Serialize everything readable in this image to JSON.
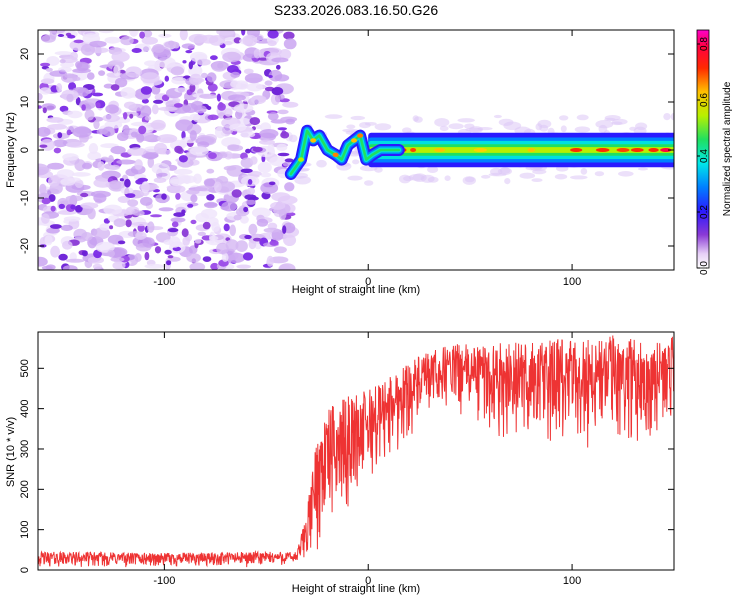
{
  "figure": {
    "title": "S233.2026.083.16.50.G26"
  },
  "chart_data": [
    {
      "type": "heatmap",
      "title": "S233.2026.083.16.50.G26",
      "xlabel": "Height of straight line (km)",
      "ylabel": "Frequency (Hz)",
      "xlim": [
        -162,
        150
      ],
      "ylim": [
        -25,
        25
      ],
      "xticks": [
        -100,
        0,
        100
      ],
      "yticks": [
        -20,
        -10,
        0,
        10,
        20
      ],
      "xtick_labels": [
        "-100",
        "0",
        "100"
      ],
      "ytick_labels": [
        "-20",
        "-10",
        "0",
        "10",
        "20"
      ],
      "colorbar": {
        "label": "Normalized spectral amplitude",
        "range": [
          0.0,
          0.85
        ],
        "ticks": [
          0.0,
          0.2,
          0.4,
          0.6,
          0.8
        ],
        "tick_labels": [
          "0.0",
          "0.2",
          "0.4",
          "0.6",
          "0.8"
        ],
        "colormap": "rainbow (white-violet-blue-cyan-green-yellow-red-magenta)"
      },
      "features": {
        "noise_region_x": [
          -162,
          -38
        ],
        "noise_amplitude": [
          0.0,
          0.1
        ],
        "turbulent_track": {
          "x": [
            -38,
            -33,
            -30,
            -27,
            -24,
            -20,
            -16,
            -13,
            -10,
            -7,
            -4,
            -1,
            2,
            6,
            10,
            15
          ],
          "freq": [
            -5,
            -2,
            4,
            2,
            3,
            0,
            -1,
            -2,
            1,
            2,
            3,
            -2,
            -1,
            0,
            0,
            0
          ]
        },
        "stable_band_x": [
          0,
          150
        ],
        "stable_band_freq": 0,
        "stable_band_amplitude": [
          0.35,
          0.8
        ]
      },
      "colors": {
        "noise": "#8a3ad6",
        "band_core": "#ff1a1a",
        "band_edge": "#1a33ff"
      }
    },
    {
      "type": "line",
      "xlabel": "Height of straight line (km)",
      "ylabel": "SNR (10 * v/v)",
      "xlim": [
        -162,
        150
      ],
      "ylim": [
        0,
        590
      ],
      "xticks": [
        -100,
        0,
        100
      ],
      "yticks": [
        0,
        100,
        200,
        300,
        400,
        500
      ],
      "xtick_labels": [
        "-100",
        "0",
        "100"
      ],
      "ytick_labels": [
        "0",
        "100",
        "200",
        "300",
        "400",
        "500"
      ],
      "series": [
        {
          "name": "SNR",
          "color": "#ee3333",
          "envelope_x": [
            -162,
            -140,
            -100,
            -60,
            -35,
            -30,
            -25,
            -20,
            -10,
            0,
            10,
            20,
            30,
            40,
            60,
            80,
            100,
            120,
            140,
            150
          ],
          "upper": [
            45,
            45,
            42,
            45,
            45,
            150,
            340,
            400,
            430,
            450,
            480,
            520,
            540,
            560,
            560,
            570,
            575,
            585,
            560,
            580
          ],
          "lower": [
            5,
            5,
            5,
            5,
            10,
            20,
            40,
            90,
            150,
            200,
            260,
            320,
            370,
            400,
            330,
            300,
            280,
            300,
            330,
            360
          ]
        }
      ]
    }
  ]
}
